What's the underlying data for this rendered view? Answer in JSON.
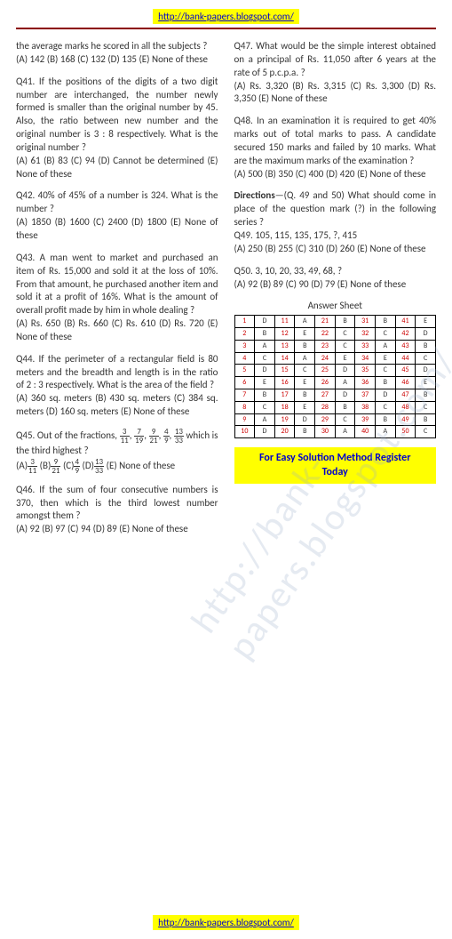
{
  "urls": {
    "header": "http://bank-papers.blogspot.com/",
    "footer": "http://bank-papers.blogspot.com/"
  },
  "watermark": "http://bank-papers.blogspot.com/",
  "q40tail": "the average marks he scored in all the subjects ?",
  "q40opts": "(A) 142 (B) 168 (C) 132 (D) 135 (E) None of these",
  "q41": "Q41. If the positions of the digits of a two digit number are interchanged, the number newly formed is smaller than the original number by 45. Also, the ratio between new number and the original number is 3 : 8 respectively. What is the original number ?",
  "q41opts": "(A) 61 (B) 83 (C) 94 (D) Cannot be determined (E) None of these",
  "q42": "Q42. 40% of 45% of a number is 324. What is the number ?",
  "q42opts": "(A) 1850 (B) 1600 (C) 2400 (D) 1800 (E) None of these",
  "q43": "Q43. A man went to market and purchased an item of Rs. 15,000 and sold it at the loss of 10%. From that amount, he purchased another item and sold it at a profit of 16%. What is the amount of overall profit made by him in whole dealing ?",
  "q43opts": "(A) Rs. 650 (B) Rs. 660 (C) Rs. 610 (D) Rs. 720 (E) None of these",
  "q44": "Q44. If the perimeter of a rectangular field is 80 meters and the breadth and length is in the ratio of 2 : 3 respectively. What is the area of the field ?",
  "q44opts": "(A) 360 sq. meters (B) 430 sq. meters (C) 384 sq. meters (D) 160 sq. meters (E) None of these",
  "q46": "Q46. If the sum of four consecutive numbers is 370, then which is the third lowest number amongst them ?",
  "q46opts": "(A) 92 (B) 97 (C) 94 (D) 89 (E) None of these",
  "q47": "Q47. What would be the simple interest obtained on a principal of Rs. 11,050 after 6 years at the rate of 5 p.c.p.a. ?",
  "q47opts": "(A) Rs. 3,320 (B) Rs. 3,315 (C) Rs. 3,300 (D) Rs. 3,350 (E) None of these",
  "q48": "Q48. In an examination it is required to get 40% marks out of total marks to pass. A candidate secured 150 marks and failed by 10 marks. What are the maximum marks of the examination ?",
  "q48opts": "(A) 500 (B) 350 (C) 400 (D) 420 (E) None of these",
  "dirlabel": "Directions",
  "dirtext": "—(Q. 49 and 50) What should come in place of the question mark (?) in the following series ?",
  "q49": "Q49. 105, 115, 135, 175, ?, 415",
  "q49opts": "(A) 250 (B) 255 (C) 310 (D) 260 (E) None of these",
  "q50": "Q50. 3, 10, 20, 33, 49, 68, ?",
  "q50opts": "(A) 92 (B) 89 (C) 90 (D) 79 (E) None of these",
  "ansTitle": "Answer Sheet",
  "answers": {
    "rows": [
      [
        "1",
        "D",
        "11",
        "A",
        "21",
        "B",
        "31",
        "B",
        "41",
        "E"
      ],
      [
        "2",
        "B",
        "12",
        "E",
        "22",
        "C",
        "32",
        "C",
        "42",
        "D"
      ],
      [
        "3",
        "A",
        "13",
        "B",
        "23",
        "C",
        "33",
        "A",
        "43",
        "B"
      ],
      [
        "4",
        "C",
        "14",
        "A",
        "24",
        "E",
        "34",
        "E",
        "44",
        "C"
      ],
      [
        "5",
        "D",
        "15",
        "C",
        "25",
        "D",
        "35",
        "C",
        "45",
        "D"
      ],
      [
        "6",
        "E",
        "16",
        "E",
        "26",
        "A",
        "36",
        "B",
        "46",
        "E"
      ],
      [
        "7",
        "B",
        "17",
        "B",
        "27",
        "D",
        "37",
        "D",
        "47",
        "B"
      ],
      [
        "8",
        "C",
        "18",
        "E",
        "28",
        "B",
        "38",
        "C",
        "48",
        "C"
      ],
      [
        "9",
        "A",
        "19",
        "D",
        "29",
        "C",
        "39",
        "B",
        "49",
        "B"
      ],
      [
        "10",
        "D",
        "20",
        "B",
        "30",
        "A",
        "40",
        "A",
        "50",
        "C"
      ]
    ]
  },
  "regbox": {
    "line1": "For Easy Solution Method Register",
    "line2": "Today"
  },
  "q45part1": "Q45. Out of the fractions,",
  "q45part2": " which is the third highest ?",
  "q45optE": "(E) None of these",
  "fracs": {
    "a": [
      "3",
      "11"
    ],
    "b": [
      "7",
      "19"
    ],
    "c": [
      "9",
      "21"
    ],
    "d": [
      "4",
      "9"
    ],
    "e": [
      "13",
      "33"
    ]
  },
  "colors": {
    "banner_bg": "#ffff00",
    "link": "#0000cc",
    "divider": "#8b0000",
    "answer_num": "#cc0000",
    "text": "#333333"
  }
}
